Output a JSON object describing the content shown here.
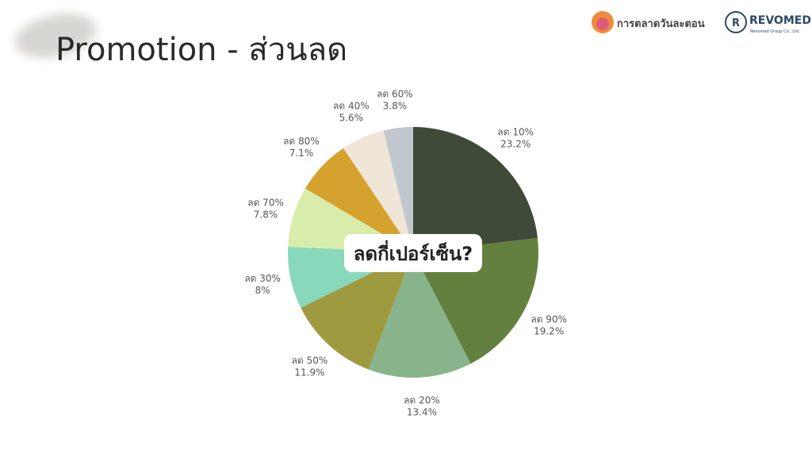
{
  "chart_data": {
    "type": "pie",
    "title": "Promotion - ส่วนลด",
    "annotation": "ลดกี่เปอร์เซ็น?",
    "categories": [
      "ลด 10%",
      "ลด 90%",
      "ลด 20%",
      "ลด 50%",
      "ลด 30%",
      "ลด 70%",
      "ลด 80%",
      "ลด 40%",
      "ลด 60%"
    ],
    "values": [
      23.2,
      19.2,
      13.4,
      11.9,
      8,
      7.8,
      7.1,
      5.6,
      3.8
    ],
    "value_labels": [
      "23.2%",
      "19.2%",
      "13.4%",
      "11.9%",
      "8%",
      "7.8%",
      "7.1%",
      "5.6%",
      "3.8%"
    ],
    "colors": [
      "#3f4a39",
      "#64803f",
      "#87b48b",
      "#9e9a40",
      "#88d8bc",
      "#d9edab",
      "#d5a22d",
      "#efe6d8",
      "#c0c8cd"
    ]
  },
  "logos": {
    "brand": "การตลาดวันละตอน",
    "company": "REVOMED",
    "company_sub": "Renomed Group Co., Ltd."
  }
}
